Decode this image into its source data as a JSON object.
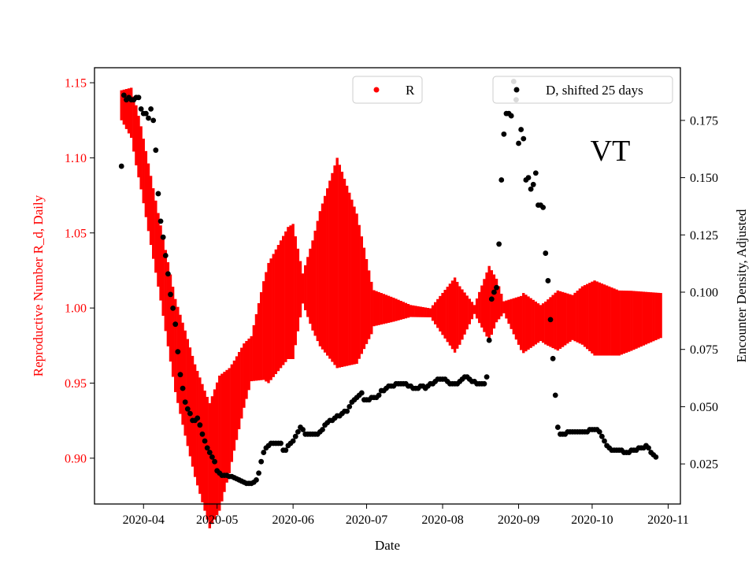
{
  "chart_data": {
    "type": "scatter",
    "annotation": "VT",
    "xlabel": "Date",
    "ylabel_left": "Reproductive Number R_d, Daily",
    "ylabel_right": "Encounter Density, Adjusted",
    "x_ticks": [
      "2020-04",
      "2020-05",
      "2020-06",
      "2020-07",
      "2020-08",
      "2020-09",
      "2020-10",
      "2020-11"
    ],
    "x_tick_days": [
      31,
      61,
      92,
      122,
      153,
      184,
      214,
      245
    ],
    "xlim_days": [
      11,
      250
    ],
    "ylim_left": [
      0.8695,
      1.16
    ],
    "yticks_left": [
      "0.90",
      "0.95",
      "1.00",
      "1.05",
      "1.10",
      "1.15"
    ],
    "ylim_right": [
      0.0075,
      0.198
    ],
    "yticks_right": [
      "0.025",
      "0.050",
      "0.075",
      "0.100",
      "0.125",
      "0.150",
      "0.175"
    ],
    "colors": {
      "R": "#ff0000",
      "D": "#000000",
      "left_axis": "#ff0000"
    },
    "series": [
      {
        "name": "R",
        "legend": "R",
        "axis": "left",
        "day_range": [
          22,
          242
        ],
        "knots_day": [
          22,
          26,
          30,
          38,
          44,
          52,
          58,
          62,
          66,
          72,
          80,
          90,
          100,
          110,
          124,
          140,
          160,
          175,
          185,
          195,
          210,
          225,
          242
        ],
        "center": [
          1.135,
          1.13,
          1.1,
          1.03,
          0.975,
          0.925,
          0.895,
          0.91,
          0.925,
          0.955,
          0.985,
          1.01,
          1.015,
          1.03,
          1.0,
          0.998,
          0.995,
          1.005,
          0.99,
          0.99,
          0.995,
          0.99,
          0.995
        ],
        "half_width_knots_day": [
          22,
          28,
          38,
          48,
          56,
          62,
          68,
          75,
          82,
          92,
          96,
          103,
          110,
          118,
          125,
          133,
          140,
          148,
          158,
          166,
          172,
          178,
          186,
          193,
          200,
          206,
          215,
          230,
          242
        ],
        "half_width": [
          0.01,
          0.02,
          0.025,
          0.035,
          0.04,
          0.045,
          0.03,
          0.015,
          0.04,
          0.045,
          0.01,
          0.045,
          0.07,
          0.05,
          0.012,
          0.008,
          0.004,
          0.003,
          0.025,
          0.003,
          0.025,
          0.004,
          0.02,
          0.012,
          0.02,
          0.015,
          0.025,
          0.02,
          0.015
        ]
      },
      {
        "name": "D",
        "legend": "D, shifted 25 days",
        "axis": "right",
        "points": [
          [
            22,
            0.155
          ],
          [
            23,
            0.186
          ],
          [
            24,
            0.184
          ],
          [
            25,
            0.185
          ],
          [
            26,
            0.184
          ],
          [
            27,
            0.184
          ],
          [
            28,
            0.185
          ],
          [
            29,
            0.185
          ],
          [
            30,
            0.18
          ],
          [
            31,
            0.178
          ],
          [
            32,
            0.178
          ],
          [
            33,
            0.176
          ],
          [
            34,
            0.18
          ],
          [
            35,
            0.175
          ],
          [
            36,
            0.162
          ],
          [
            37,
            0.143
          ],
          [
            38,
            0.131
          ],
          [
            39,
            0.124
          ],
          [
            40,
            0.116
          ],
          [
            41,
            0.108
          ],
          [
            42,
            0.099
          ],
          [
            43,
            0.093
          ],
          [
            44,
            0.086
          ],
          [
            45,
            0.074
          ],
          [
            46,
            0.064
          ],
          [
            47,
            0.058
          ],
          [
            48,
            0.052
          ],
          [
            49,
            0.049
          ],
          [
            50,
            0.047
          ],
          [
            51,
            0.044
          ],
          [
            52,
            0.044
          ],
          [
            53,
            0.045
          ],
          [
            54,
            0.042
          ],
          [
            55,
            0.038
          ],
          [
            56,
            0.035
          ],
          [
            57,
            0.032
          ],
          [
            58,
            0.03
          ],
          [
            59,
            0.028
          ],
          [
            60,
            0.026
          ],
          [
            61,
            0.022
          ],
          [
            62,
            0.021
          ],
          [
            63,
            0.02
          ],
          [
            64,
            0.02
          ],
          [
            65,
            0.02
          ],
          [
            66,
            0.0195
          ],
          [
            67,
            0.0195
          ],
          [
            68,
            0.019
          ],
          [
            69,
            0.0185
          ],
          [
            70,
            0.018
          ],
          [
            71,
            0.0175
          ],
          [
            72,
            0.017
          ],
          [
            73,
            0.0165
          ],
          [
            74,
            0.0165
          ],
          [
            75,
            0.0165
          ],
          [
            76,
            0.017
          ],
          [
            77,
            0.018
          ],
          [
            78,
            0.021
          ],
          [
            79,
            0.026
          ],
          [
            80,
            0.03
          ],
          [
            81,
            0.032
          ],
          [
            82,
            0.033
          ],
          [
            83,
            0.034
          ],
          [
            84,
            0.034
          ],
          [
            85,
            0.034
          ],
          [
            86,
            0.034
          ],
          [
            87,
            0.034
          ],
          [
            88,
            0.031
          ],
          [
            89,
            0.031
          ],
          [
            90,
            0.033
          ],
          [
            91,
            0.034
          ],
          [
            92,
            0.035
          ],
          [
            93,
            0.037
          ],
          [
            94,
            0.039
          ],
          [
            95,
            0.041
          ],
          [
            96,
            0.04
          ],
          [
            97,
            0.038
          ],
          [
            98,
            0.038
          ],
          [
            99,
            0.038
          ],
          [
            100,
            0.038
          ],
          [
            101,
            0.038
          ],
          [
            102,
            0.038
          ],
          [
            103,
            0.039
          ],
          [
            104,
            0.04
          ],
          [
            105,
            0.042
          ],
          [
            106,
            0.043
          ],
          [
            107,
            0.044
          ],
          [
            108,
            0.044
          ],
          [
            109,
            0.045
          ],
          [
            110,
            0.046
          ],
          [
            111,
            0.046
          ],
          [
            112,
            0.047
          ],
          [
            113,
            0.048
          ],
          [
            114,
            0.048
          ],
          [
            115,
            0.05
          ],
          [
            116,
            0.052
          ],
          [
            117,
            0.053
          ],
          [
            118,
            0.054
          ],
          [
            119,
            0.055
          ],
          [
            120,
            0.056
          ],
          [
            121,
            0.053
          ],
          [
            122,
            0.053
          ],
          [
            123,
            0.053
          ],
          [
            124,
            0.054
          ],
          [
            125,
            0.054
          ],
          [
            126,
            0.054
          ],
          [
            127,
            0.055
          ],
          [
            128,
            0.057
          ],
          [
            129,
            0.057
          ],
          [
            130,
            0.058
          ],
          [
            131,
            0.059
          ],
          [
            132,
            0.059
          ],
          [
            133,
            0.059
          ],
          [
            134,
            0.06
          ],
          [
            135,
            0.06
          ],
          [
            136,
            0.06
          ],
          [
            137,
            0.06
          ],
          [
            138,
            0.06
          ],
          [
            139,
            0.059
          ],
          [
            140,
            0.059
          ],
          [
            141,
            0.058
          ],
          [
            142,
            0.058
          ],
          [
            143,
            0.058
          ],
          [
            144,
            0.059
          ],
          [
            145,
            0.059
          ],
          [
            146,
            0.058
          ],
          [
            147,
            0.059
          ],
          [
            148,
            0.06
          ],
          [
            149,
            0.06
          ],
          [
            150,
            0.061
          ],
          [
            151,
            0.062
          ],
          [
            152,
            0.062
          ],
          [
            153,
            0.062
          ],
          [
            154,
            0.062
          ],
          [
            155,
            0.061
          ],
          [
            156,
            0.06
          ],
          [
            157,
            0.06
          ],
          [
            158,
            0.06
          ],
          [
            159,
            0.06
          ],
          [
            160,
            0.061
          ],
          [
            161,
            0.062
          ],
          [
            162,
            0.063
          ],
          [
            163,
            0.063
          ],
          [
            164,
            0.062
          ],
          [
            165,
            0.061
          ],
          [
            166,
            0.061
          ],
          [
            167,
            0.06
          ],
          [
            168,
            0.06
          ],
          [
            169,
            0.06
          ],
          [
            170,
            0.06
          ],
          [
            171,
            0.063
          ],
          [
            172,
            0.079
          ],
          [
            173,
            0.097
          ],
          [
            174,
            0.1
          ],
          [
            175,
            0.102
          ],
          [
            176,
            0.121
          ],
          [
            177,
            0.149
          ],
          [
            178,
            0.169
          ],
          [
            179,
            0.178
          ],
          [
            180,
            0.178
          ],
          [
            181,
            0.177
          ],
          [
            182,
            0.192
          ],
          [
            183,
            0.184
          ],
          [
            184,
            0.165
          ],
          [
            185,
            0.171
          ],
          [
            186,
            0.167
          ],
          [
            187,
            0.149
          ],
          [
            188,
            0.15
          ],
          [
            189,
            0.145
          ],
          [
            190,
            0.147
          ],
          [
            191,
            0.152
          ],
          [
            192,
            0.138
          ],
          [
            193,
            0.138
          ],
          [
            194,
            0.137
          ],
          [
            195,
            0.117
          ],
          [
            196,
            0.105
          ],
          [
            197,
            0.088
          ],
          [
            198,
            0.071
          ],
          [
            199,
            0.055
          ],
          [
            200,
            0.041
          ],
          [
            201,
            0.038
          ],
          [
            202,
            0.038
          ],
          [
            203,
            0.038
          ],
          [
            204,
            0.039
          ],
          [
            205,
            0.039
          ],
          [
            206,
            0.039
          ],
          [
            207,
            0.039
          ],
          [
            208,
            0.039
          ],
          [
            209,
            0.039
          ],
          [
            210,
            0.039
          ],
          [
            211,
            0.039
          ],
          [
            212,
            0.039
          ],
          [
            213,
            0.04
          ],
          [
            214,
            0.04
          ],
          [
            215,
            0.04
          ],
          [
            216,
            0.04
          ],
          [
            217,
            0.039
          ],
          [
            218,
            0.037
          ],
          [
            219,
            0.035
          ],
          [
            220,
            0.033
          ],
          [
            221,
            0.032
          ],
          [
            222,
            0.031
          ],
          [
            223,
            0.031
          ],
          [
            224,
            0.031
          ],
          [
            225,
            0.031
          ],
          [
            226,
            0.031
          ],
          [
            227,
            0.03
          ],
          [
            228,
            0.03
          ],
          [
            229,
            0.03
          ],
          [
            230,
            0.031
          ],
          [
            231,
            0.031
          ],
          [
            232,
            0.031
          ],
          [
            233,
            0.032
          ],
          [
            234,
            0.032
          ],
          [
            235,
            0.032
          ],
          [
            236,
            0.033
          ],
          [
            237,
            0.032
          ],
          [
            238,
            0.03
          ],
          [
            239,
            0.029
          ],
          [
            240,
            0.028
          ]
        ]
      }
    ]
  }
}
